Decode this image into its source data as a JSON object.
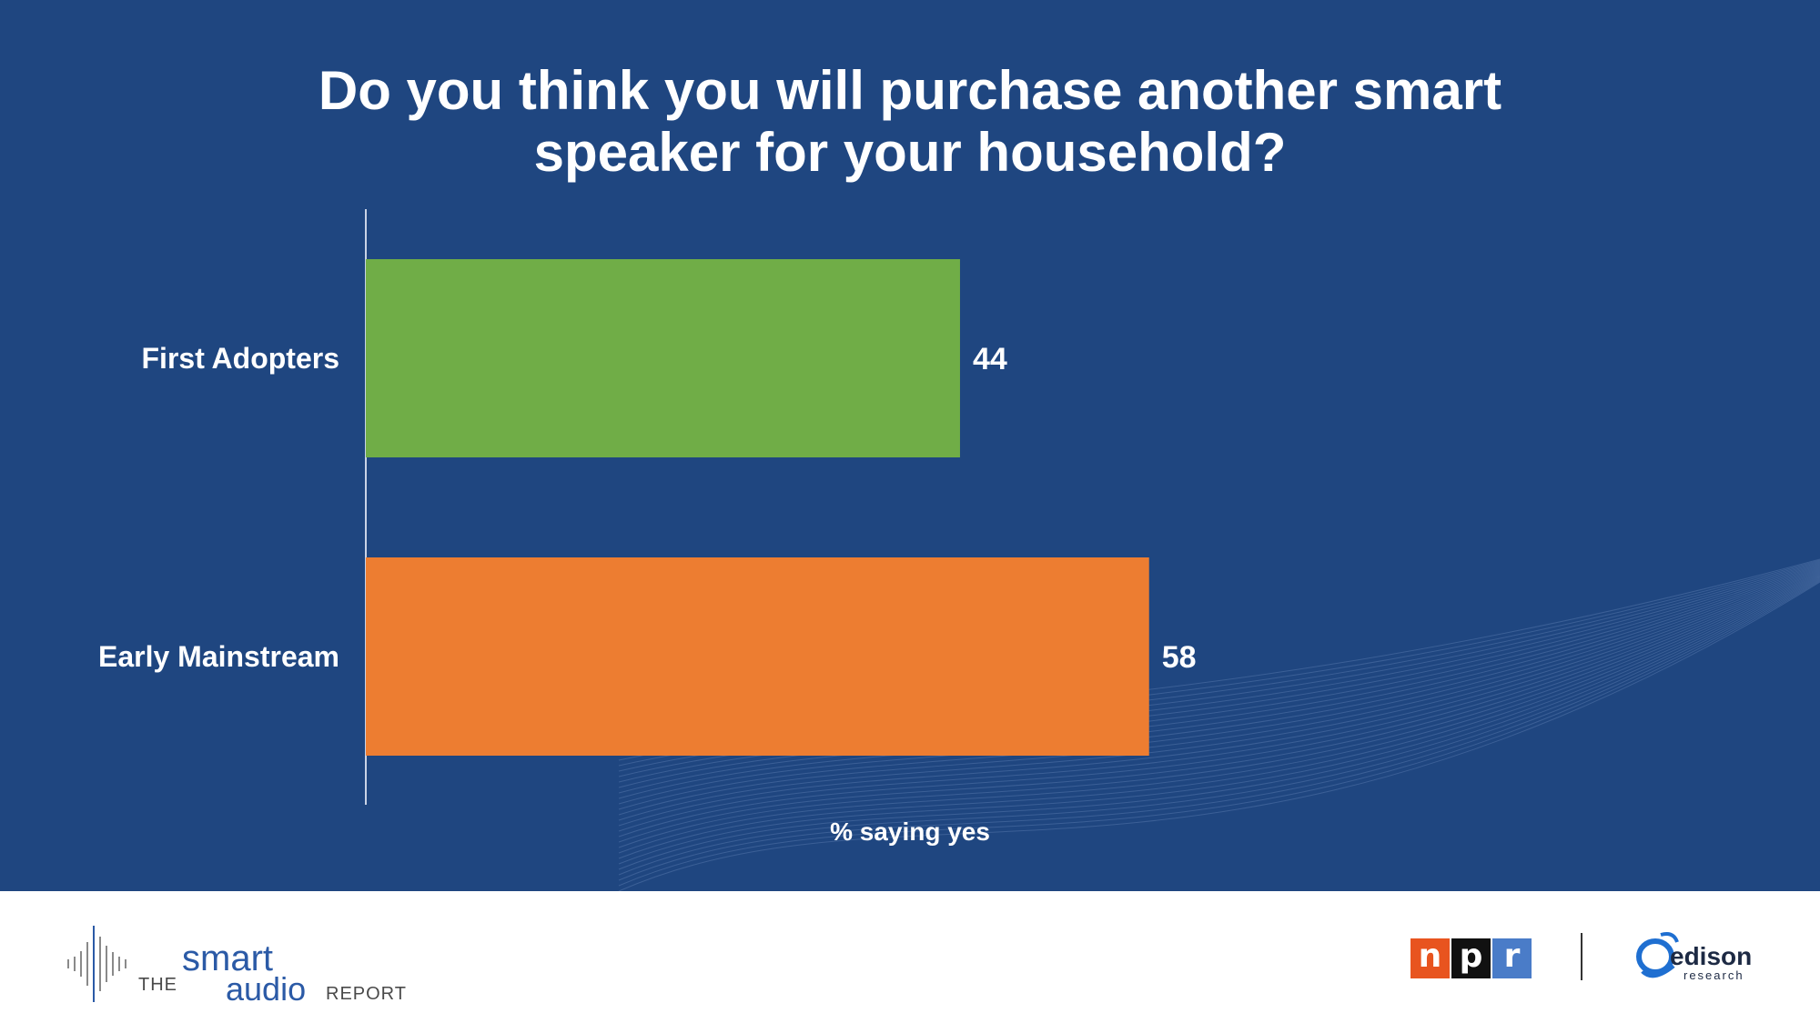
{
  "chart_data": {
    "type": "bar",
    "orientation": "horizontal",
    "title": "Do you think you will purchase another smart speaker for your household?",
    "categories": [
      "First Adopters",
      "Early Mainstream"
    ],
    "values": [
      44,
      58
    ],
    "value_labels": [
      "44",
      "58"
    ],
    "colors": [
      "#70ad47",
      "#ed7d31"
    ],
    "xlabel": "% saying yes",
    "ylabel": "",
    "xlim": [
      0,
      100
    ],
    "grid": false,
    "legend": "none"
  },
  "theme": {
    "background": "#1f4680",
    "text": "#ffffff",
    "footer_background": "#ffffff"
  },
  "footer": {
    "smart_audio_logo": {
      "the": "THE",
      "smart": "smart",
      "audio": "audio",
      "report": "REPORT",
      "icon": "soundwave-icon"
    },
    "npr_logo": {
      "letters": [
        "n",
        "p",
        "r"
      ],
      "colors": [
        "#e8541f",
        "#111111",
        "#4a7cc8"
      ]
    },
    "edison_logo": {
      "name": "edison",
      "sub": "research",
      "icon": "edison-swirl-icon"
    }
  }
}
